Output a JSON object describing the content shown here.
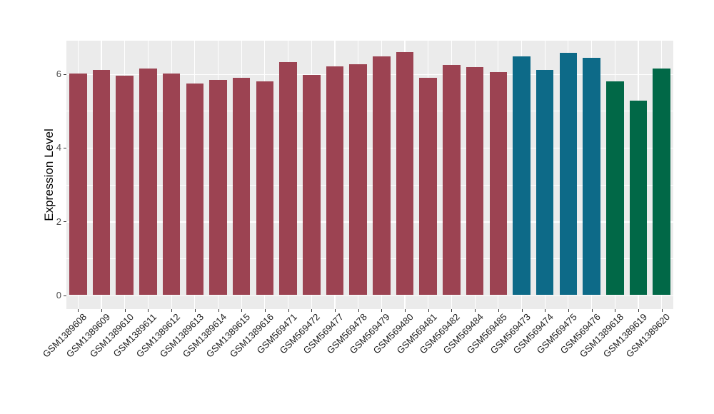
{
  "chart_data": {
    "type": "bar",
    "ylabel": "Expression Level",
    "xlabel": "",
    "ylim": [
      0,
      6.91
    ],
    "yticks": [
      0,
      2,
      4,
      6
    ],
    "minor_yticks": [
      1,
      3,
      5
    ],
    "grid": "on",
    "legend": "none",
    "panel_bg": "#EBEBEB",
    "grid_color": "#FFFFFF",
    "tick_color": "#333333",
    "palette": {
      "group_a": "#9C4352",
      "group_b": "#0D6A88",
      "group_c": "#016847"
    },
    "bars": [
      {
        "label": "GSM1389608",
        "value": 6.02,
        "color": "#9C4352"
      },
      {
        "label": "GSM1389609",
        "value": 6.1,
        "color": "#9C4352"
      },
      {
        "label": "GSM1389610",
        "value": 5.95,
        "color": "#9C4352"
      },
      {
        "label": "GSM1389611",
        "value": 6.14,
        "color": "#9C4352"
      },
      {
        "label": "GSM1389612",
        "value": 6.01,
        "color": "#9C4352"
      },
      {
        "label": "GSM1389613",
        "value": 5.75,
        "color": "#9C4352"
      },
      {
        "label": "GSM1389614",
        "value": 5.84,
        "color": "#9C4352"
      },
      {
        "label": "GSM1389615",
        "value": 5.89,
        "color": "#9C4352"
      },
      {
        "label": "GSM1389616",
        "value": 5.8,
        "color": "#9C4352"
      },
      {
        "label": "GSM569471",
        "value": 6.32,
        "color": "#9C4352"
      },
      {
        "label": "GSM569472",
        "value": 5.98,
        "color": "#9C4352"
      },
      {
        "label": "GSM569477",
        "value": 6.2,
        "color": "#9C4352"
      },
      {
        "label": "GSM569478",
        "value": 6.26,
        "color": "#9C4352"
      },
      {
        "label": "GSM569479",
        "value": 6.48,
        "color": "#9C4352"
      },
      {
        "label": "GSM569480",
        "value": 6.6,
        "color": "#9C4352"
      },
      {
        "label": "GSM569481",
        "value": 5.89,
        "color": "#9C4352"
      },
      {
        "label": "GSM569482",
        "value": 6.24,
        "color": "#9C4352"
      },
      {
        "label": "GSM569484",
        "value": 6.18,
        "color": "#9C4352"
      },
      {
        "label": "GSM569485",
        "value": 6.06,
        "color": "#9C4352"
      },
      {
        "label": "GSM569473",
        "value": 6.47,
        "color": "#0D6A88"
      },
      {
        "label": "GSM569474",
        "value": 6.1,
        "color": "#0D6A88"
      },
      {
        "label": "GSM569475",
        "value": 6.57,
        "color": "#0D6A88"
      },
      {
        "label": "GSM569476",
        "value": 6.43,
        "color": "#0D6A88"
      },
      {
        "label": "GSM1389618",
        "value": 5.79,
        "color": "#016847"
      },
      {
        "label": "GSM1389619",
        "value": 5.27,
        "color": "#016847"
      },
      {
        "label": "GSM1389620",
        "value": 6.14,
        "color": "#016847"
      }
    ]
  }
}
